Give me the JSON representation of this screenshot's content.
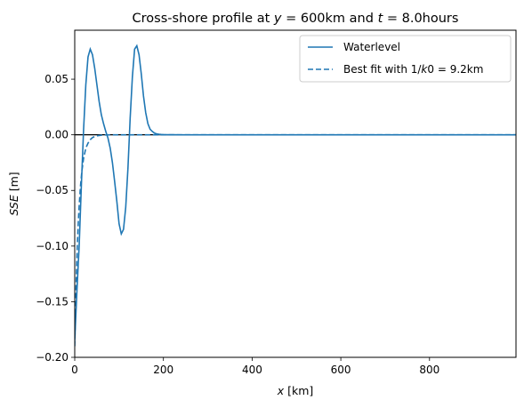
{
  "chart_data": {
    "type": "line",
    "title": {
      "prefix": "Cross-shore profile at ",
      "y_var": "y",
      "y_eq": " = 600km and ",
      "t_var": "t",
      "t_eq": " = 8.0hours"
    },
    "xlabel": {
      "var": "x",
      "unit": " [km]"
    },
    "ylabel": {
      "var": "SSE",
      "unit": " [m]"
    },
    "xlim": [
      0,
      995
    ],
    "ylim": [
      -0.2,
      0.094
    ],
    "xticks": [
      0,
      200,
      400,
      600,
      800
    ],
    "xtick_labels": [
      "0",
      "200",
      "400",
      "600",
      "800"
    ],
    "yticks": [
      -0.2,
      -0.15,
      -0.1,
      -0.05,
      0.0,
      0.05
    ],
    "ytick_labels": [
      "−0.20",
      "−0.15",
      "−0.10",
      "−0.05",
      "0.00",
      "0.05"
    ],
    "grid": false,
    "legend_position": "top-right",
    "zero_line": 0.0,
    "series": [
      {
        "name": "Waterlevel",
        "style": "solid",
        "color": "#1f77b4",
        "x": [
          0,
          5,
          10,
          15,
          20,
          25,
          30,
          35,
          40,
          45,
          50,
          55,
          60,
          65,
          70,
          75,
          80,
          85,
          90,
          95,
          100,
          105,
          110,
          115,
          120,
          125,
          130,
          135,
          140,
          145,
          150,
          155,
          160,
          165,
          170,
          175,
          180,
          185,
          190,
          195,
          200,
          210,
          220,
          240,
          300,
          400,
          600,
          800,
          995
        ],
        "y": [
          -0.185,
          -0.14,
          -0.1,
          -0.045,
          0.005,
          0.045,
          0.07,
          0.077,
          0.072,
          0.06,
          0.045,
          0.03,
          0.018,
          0.01,
          0.003,
          -0.003,
          -0.012,
          -0.025,
          -0.042,
          -0.06,
          -0.08,
          -0.089,
          -0.085,
          -0.065,
          -0.03,
          0.015,
          0.052,
          0.077,
          0.08,
          0.072,
          0.055,
          0.035,
          0.02,
          0.01,
          0.005,
          0.003,
          0.0015,
          0.0008,
          0.0005,
          0.0003,
          0.0002,
          0.0001,
          0.0001,
          0.0,
          0.0,
          0.0,
          0.0,
          0.0,
          0.0
        ]
      },
      {
        "name": "Best fit with 1/k0 = 9.2km",
        "name_parts": {
          "prefix": "Best fit with 1/",
          "var": "k",
          "suffix": "0 = 9.2km"
        },
        "style": "dashed",
        "color": "#1f77b4",
        "x": [
          0,
          2,
          4,
          6,
          8,
          10,
          13,
          16,
          20,
          25,
          30,
          35,
          40,
          45,
          50,
          60,
          70,
          80,
          100,
          150,
          200,
          400,
          600,
          800,
          995
        ],
        "y": [
          -0.19,
          -0.152,
          -0.122,
          -0.098,
          -0.079,
          -0.064,
          -0.046,
          -0.033,
          -0.021,
          -0.012,
          -0.0075,
          -0.0044,
          -0.0025,
          -0.0015,
          -0.0009,
          -0.0003,
          -0.0001,
          0.0,
          0.0,
          0.0,
          0.0,
          0.0,
          0.0,
          0.0,
          0.0
        ]
      }
    ]
  }
}
